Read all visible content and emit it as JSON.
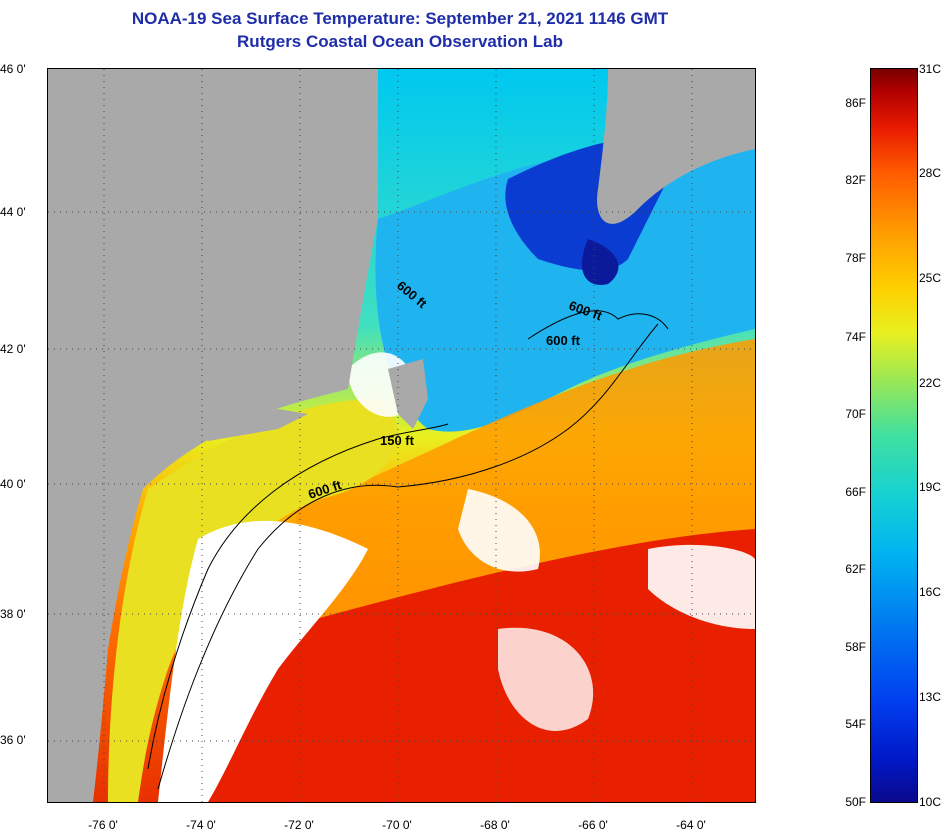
{
  "header": {
    "title": "NOAA-19 Sea Surface Temperature:  September 21, 2021 1146 GMT",
    "subtitle": "Rutgers Coastal Ocean Observation Lab"
  },
  "map": {
    "lat_labels": [
      "46 0'",
      "44 0'",
      "42 0'",
      "40 0'",
      "38 0'",
      "36 0'"
    ],
    "lon_labels": [
      "-76 0'",
      "-74 0'",
      "-72 0'",
      "-70 0'",
      "-68 0'",
      "-66 0'",
      "-64 0'"
    ],
    "contour_labels": [
      "600 ft",
      "600 ft",
      "600 ft",
      "150 ft",
      "600 ft"
    ],
    "colors": {
      "land": "#a9a9a9",
      "cloud": "#ffffff",
      "cold": "#0a3cd2",
      "cool": "#1fb4f0",
      "mid": "#e8f020",
      "warm": "#ff9a00",
      "hot": "#e82000"
    }
  },
  "colorbar": {
    "fahrenheit": [
      "86F",
      "82F",
      "78F",
      "74F",
      "70F",
      "66F",
      "62F",
      "58F",
      "54F",
      "50F"
    ],
    "celsius": [
      "31C",
      "28C",
      "25C",
      "22C",
      "19C",
      "16C",
      "13C",
      "10C"
    ]
  }
}
